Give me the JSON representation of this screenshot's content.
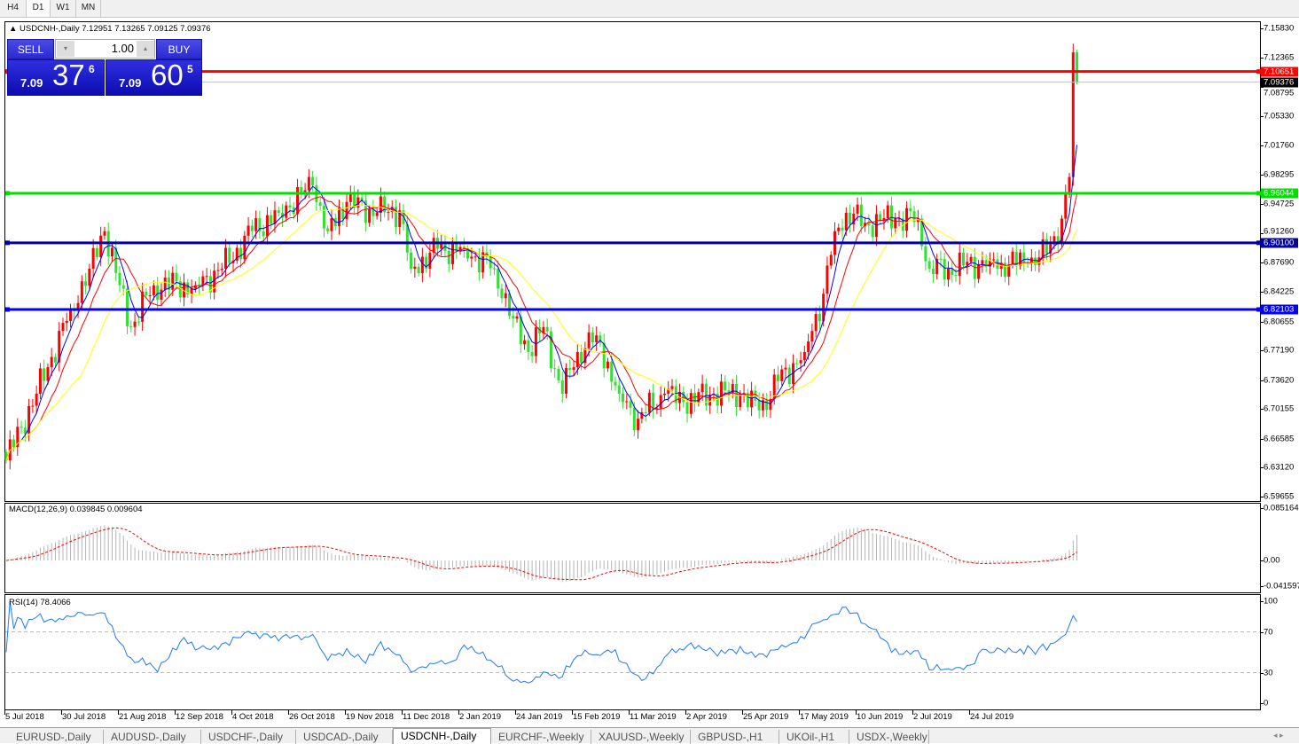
{
  "toolbar": {
    "timeframes": [
      "H4",
      "D1",
      "W1",
      "MN"
    ],
    "active": "D1"
  },
  "chart": {
    "header": "USDCNH-,Daily  7.12951 7.13265 7.09125 7.09376",
    "symbol": "USDCNH-",
    "period": "Daily",
    "ohlc": {
      "open": 7.12951,
      "high": 7.13265,
      "low": 7.09125,
      "close": 7.09376
    }
  },
  "trade_panel": {
    "sell_label": "SELL",
    "buy_label": "BUY",
    "volume": "1.00",
    "sell": {
      "prefix": "7.09",
      "big": "37",
      "pip": "6"
    },
    "buy": {
      "prefix": "7.09",
      "big": "60",
      "pip": "5"
    }
  },
  "price_axis": {
    "labels": [
      "7.15830",
      "7.12365",
      "7.08795",
      "7.05330",
      "7.01760",
      "6.98295",
      "6.94725",
      "6.91260",
      "6.87690",
      "6.84225",
      "6.80655",
      "6.77190",
      "6.73620",
      "6.70155",
      "6.66585",
      "6.63120",
      "6.59655"
    ],
    "range": [
      6.59655,
      7.1583
    ]
  },
  "hlines": [
    {
      "price": "7.10651",
      "color": "#ff0000"
    },
    {
      "price": "6.96044",
      "color": "#00e000"
    },
    {
      "price": "6.90100",
      "color": "#00009c"
    },
    {
      "price": "6.82103",
      "color": "#0000ff"
    }
  ],
  "bid_label": "7.09376",
  "macd": {
    "label": "MACD(12,26,9) 0.039845 0.009604",
    "axis": [
      "0.085164",
      "0.00",
      "-0.041597"
    ],
    "range": [
      -0.041597,
      0.085164
    ],
    "hist_color": "#b4b4b4",
    "signal_color": "#ff0000"
  },
  "rsi": {
    "label": "RSI(14) 78.4066",
    "axis": [
      "100",
      "70",
      "30",
      "0"
    ],
    "levels": [
      70,
      30
    ],
    "color": "#1e78ff"
  },
  "time_axis": [
    "5 Jul 2018",
    "30 Jul 2018",
    "21 Aug 2018",
    "12 Sep 2018",
    "4 Oct 2018",
    "26 Oct 2018",
    "19 Nov 2018",
    "11 Dec 2018",
    "2 Jan 2019",
    "24 Jan 2019",
    "15 Feb 2019",
    "11 Mar 2019",
    "2 Apr 2019",
    "25 Apr 2019",
    "17 May 2019",
    "10 Jun 2019",
    "2 Jul 2019",
    "24 Jul 2019"
  ],
  "tabs": [
    "EURUSD-,Daily",
    "AUDUSD-,Daily",
    "USDCHF-,Daily",
    "USDCAD-,Daily",
    "USDCNH-,Daily",
    "EURCHF-,Weekly",
    "XAUUSD-,Weekly",
    "GBPUSD-,H1",
    "UKOil-,H1",
    "USDX-,Weekly"
  ],
  "active_tab": "USDCNH-,Daily",
  "colors": {
    "up_candle": "#ff0000",
    "down_candle": "#32e032",
    "ma_fast": "#0000ff",
    "ma_mid": "#ff0000",
    "ma_slow": "#ffff00"
  },
  "chart_data": {
    "type": "candlestick",
    "approx_closes": [
      [
        "2018-07-05",
        6.64
      ],
      [
        "2018-07-17",
        6.72
      ],
      [
        "2018-07-30",
        6.82
      ],
      [
        "2018-08-06",
        6.87
      ],
      [
        "2018-08-10",
        6.915
      ],
      [
        "2018-08-16",
        6.85
      ],
      [
        "2018-08-21",
        6.8
      ],
      [
        "2018-08-29",
        6.85
      ],
      [
        "2018-09-13",
        6.85
      ],
      [
        "2018-09-24",
        6.87
      ],
      [
        "2018-10-04",
        6.915
      ],
      [
        "2018-10-15",
        6.937
      ],
      [
        "2018-10-26",
        6.97
      ],
      [
        "2018-11-01",
        6.915
      ],
      [
        "2018-11-08",
        6.95
      ],
      [
        "2018-11-20",
        6.937
      ],
      [
        "2018-11-28",
        6.94
      ],
      [
        "2018-12-03",
        6.87
      ],
      [
        "2018-12-12",
        6.894
      ],
      [
        "2018-12-21",
        6.894
      ],
      [
        "2019-01-02",
        6.87
      ],
      [
        "2019-01-09",
        6.81
      ],
      [
        "2019-01-15",
        6.77
      ],
      [
        "2019-01-21",
        6.8
      ],
      [
        "2019-01-28",
        6.72
      ],
      [
        "2019-02-01",
        6.77
      ],
      [
        "2019-02-08",
        6.79
      ],
      [
        "2019-02-18",
        6.72
      ],
      [
        "2019-02-25",
        6.69
      ],
      [
        "2019-03-06",
        6.72
      ],
      [
        "2019-03-13",
        6.71
      ],
      [
        "2019-03-25",
        6.72
      ],
      [
        "2019-04-03",
        6.72
      ],
      [
        "2019-04-10",
        6.7
      ],
      [
        "2019-04-17",
        6.735
      ],
      [
        "2019-04-26",
        6.77
      ],
      [
        "2019-05-03",
        6.84
      ],
      [
        "2019-05-08",
        6.915
      ],
      [
        "2019-05-13",
        6.937
      ],
      [
        "2019-05-20",
        6.925
      ],
      [
        "2019-05-30",
        6.93
      ],
      [
        "2019-06-07",
        6.93
      ],
      [
        "2019-06-12",
        6.87
      ],
      [
        "2019-06-19",
        6.87
      ],
      [
        "2019-07-04",
        6.88
      ],
      [
        "2019-07-09",
        6.877
      ],
      [
        "2019-07-18",
        6.877
      ],
      [
        "2019-07-25",
        6.888
      ],
      [
        "2019-07-31",
        6.93
      ],
      [
        "2019-08-01",
        6.96
      ],
      [
        "2019-08-02",
        6.98
      ],
      [
        "2019-08-05",
        7.12951
      ]
    ]
  }
}
